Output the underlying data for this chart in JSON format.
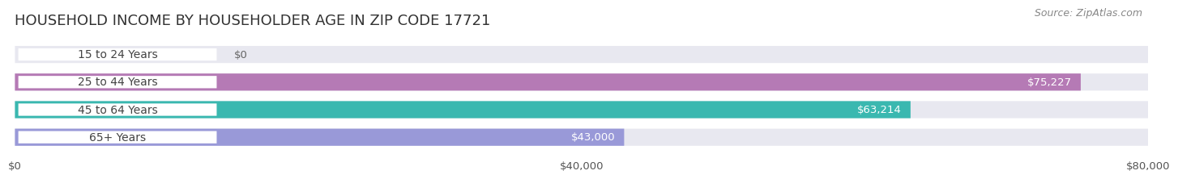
{
  "title": "HOUSEHOLD INCOME BY HOUSEHOLDER AGE IN ZIP CODE 17721",
  "source": "Source: ZipAtlas.com",
  "categories": [
    "15 to 24 Years",
    "25 to 44 Years",
    "45 to 64 Years",
    "65+ Years"
  ],
  "values": [
    0,
    75227,
    63214,
    43000
  ],
  "bar_colors": [
    "#a8bde0",
    "#b57ab5",
    "#3ab8b0",
    "#9999d8"
  ],
  "label_texts": [
    "$0",
    "$75,227",
    "$63,214",
    "$43,000"
  ],
  "label_inside": [
    false,
    true,
    true,
    true
  ],
  "x_ticks": [
    0,
    40000,
    80000
  ],
  "x_tick_labels": [
    "$0",
    "$40,000",
    "$80,000"
  ],
  "x_max": 80000,
  "background_color": "#ffffff",
  "bar_bg_color": "#e8e8f0",
  "title_fontsize": 13,
  "source_fontsize": 9,
  "label_fontsize": 9.5,
  "tick_fontsize": 9.5,
  "cat_fontsize": 10
}
